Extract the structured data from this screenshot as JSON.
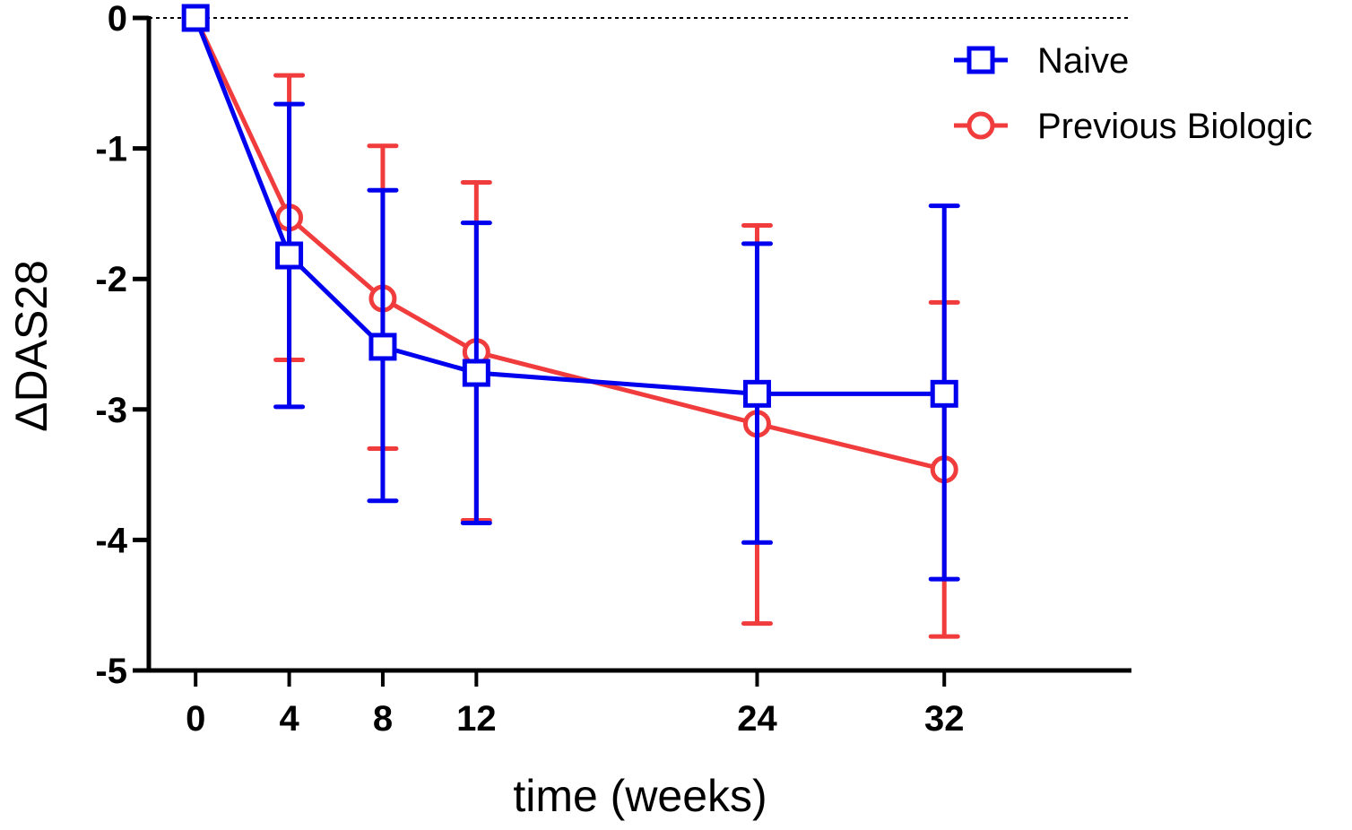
{
  "chart_data": {
    "type": "line",
    "title": "",
    "xlabel": "time (weeks)",
    "ylabel": "ΔDAS28",
    "x": [
      0,
      4,
      8,
      12,
      24,
      32
    ],
    "xlim": [
      -2,
      40
    ],
    "ylim": [
      -5,
      0
    ],
    "x_ticks": [
      0,
      4,
      8,
      12,
      24,
      32
    ],
    "x_tick_labels": [
      "0",
      "4",
      "8",
      "12",
      "24",
      "32"
    ],
    "y_ticks": [
      0,
      -1,
      -2,
      -3,
      -4,
      -5
    ],
    "y_tick_labels": [
      "0",
      "-1",
      "-2",
      "-3",
      "-4",
      "-5"
    ],
    "grid": false,
    "reference_line": {
      "y": 0,
      "style": "dotted"
    },
    "legend_position": "top-right",
    "series": [
      {
        "name": "Naive",
        "marker": "square",
        "color": "#0000ee",
        "values": [
          0,
          -1.82,
          -2.52,
          -2.72,
          -2.88,
          -2.88
        ],
        "error_upper": [
          null,
          -0.66,
          -1.32,
          -1.57,
          -1.73,
          -1.44
        ],
        "error_lower": [
          null,
          -2.98,
          -3.7,
          -3.87,
          -4.02,
          -4.3
        ]
      },
      {
        "name": "Previous Biologic",
        "marker": "circle",
        "color": "#f03c3c",
        "values": [
          0,
          -1.53,
          -2.15,
          -2.56,
          -3.11,
          -3.46
        ],
        "error_upper": [
          null,
          -0.44,
          -0.98,
          -1.26,
          -1.59,
          -2.18
        ],
        "error_lower": [
          null,
          -2.62,
          -3.3,
          -3.85,
          -4.64,
          -4.74
        ]
      }
    ]
  }
}
